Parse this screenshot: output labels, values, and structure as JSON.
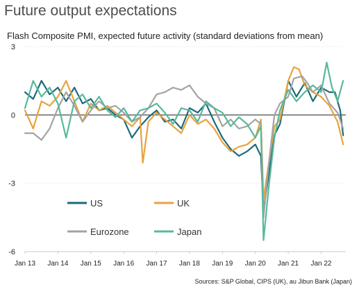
{
  "title": "Future output expectations",
  "chart_data": {
    "type": "line",
    "title": "Future output expectations",
    "subtitle": "Flash Composite PMI, expected future activity (standard deviations from mean)",
    "source": "Sources: S&P Global, CIPS (UK), au Jibun Bank (Japan)",
    "ylim": [
      -6,
      3
    ],
    "yticks": [
      3,
      0,
      -3,
      -6
    ],
    "xlim": [
      2013.0,
      2022.75
    ],
    "xticks": [
      {
        "label": "Jan 13",
        "value": 2013
      },
      {
        "label": "Jan 14",
        "value": 2014
      },
      {
        "label": "Jan 15",
        "value": 2015
      },
      {
        "label": "Jan 16",
        "value": 2016
      },
      {
        "label": "Jan 17",
        "value": 2017
      },
      {
        "label": "Jan 18",
        "value": 2018
      },
      {
        "label": "Jan 19",
        "value": 2019
      },
      {
        "label": "Jan 20",
        "value": 2020
      },
      {
        "label": "Jan 21",
        "value": 2021
      },
      {
        "label": "Jan 22",
        "value": 2022
      }
    ],
    "legend_placement": "lower-left",
    "series": [
      {
        "name": "US",
        "color": "#1b6a7a",
        "x": [
          2013.0,
          2013.25,
          2013.5,
          2013.75,
          2014.0,
          2014.25,
          2014.5,
          2014.75,
          2015.0,
          2015.25,
          2015.5,
          2015.75,
          2016.0,
          2016.25,
          2016.5,
          2016.75,
          2017.0,
          2017.25,
          2017.5,
          2017.75,
          2018.0,
          2018.25,
          2018.5,
          2018.75,
          2019.0,
          2019.25,
          2019.5,
          2019.75,
          2020.0,
          2020.17,
          2020.25,
          2020.42,
          2020.58,
          2020.75,
          2021.0,
          2021.25,
          2021.5,
          2021.75,
          2022.0,
          2022.25,
          2022.42,
          2022.58,
          2022.67
        ],
        "y": [
          1.0,
          0.7,
          1.5,
          0.9,
          1.2,
          0.6,
          1.2,
          0.5,
          0.7,
          0.2,
          0.3,
          0.0,
          -0.2,
          -1.0,
          -0.5,
          -0.1,
          0.2,
          -0.3,
          -0.2,
          -0.6,
          0.3,
          0.1,
          0.5,
          -0.3,
          -1.0,
          -1.5,
          -1.8,
          -1.6,
          -1.3,
          -1.8,
          -4.2,
          -2.5,
          -0.9,
          -0.4,
          1.5,
          0.8,
          1.4,
          0.6,
          1.2,
          1.0,
          1.0,
          0.2,
          -0.9
        ]
      },
      {
        "name": "UK",
        "color": "#e8a23f",
        "x": [
          2013.0,
          2013.25,
          2013.5,
          2013.75,
          2014.0,
          2014.25,
          2014.5,
          2014.75,
          2015.0,
          2015.25,
          2015.5,
          2015.75,
          2016.0,
          2016.25,
          2016.5,
          2016.58,
          2016.75,
          2017.0,
          2017.25,
          2017.5,
          2017.75,
          2018.0,
          2018.25,
          2018.5,
          2018.75,
          2019.0,
          2019.25,
          2019.5,
          2019.75,
          2020.0,
          2020.17,
          2020.25,
          2020.42,
          2020.58,
          2020.75,
          2021.0,
          2021.17,
          2021.33,
          2021.5,
          2021.75,
          2022.0,
          2022.25,
          2022.5,
          2022.67
        ],
        "y": [
          0.2,
          -0.6,
          0.6,
          0.4,
          0.8,
          1.5,
          0.6,
          -0.3,
          0.5,
          0.2,
          0.4,
          0.1,
          -0.2,
          -0.5,
          -0.1,
          -2.1,
          -0.3,
          0.1,
          -0.2,
          -0.5,
          -0.8,
          0.0,
          -0.4,
          -0.2,
          -0.6,
          -1.2,
          -1.6,
          -1.4,
          -1.3,
          -1.0,
          -0.2,
          -3.7,
          -2.0,
          -0.5,
          -0.2,
          1.5,
          2.1,
          2.0,
          1.3,
          1.0,
          0.8,
          0.4,
          -0.3,
          -1.3
        ]
      },
      {
        "name": "Eurozone",
        "color": "#a3a3a3",
        "x": [
          2013.0,
          2013.25,
          2013.5,
          2013.75,
          2014.0,
          2014.25,
          2014.5,
          2014.75,
          2015.0,
          2015.25,
          2015.5,
          2015.75,
          2016.0,
          2016.25,
          2016.5,
          2016.75,
          2017.0,
          2017.25,
          2017.5,
          2017.75,
          2018.0,
          2018.25,
          2018.5,
          2018.75,
          2019.0,
          2019.25,
          2019.5,
          2019.75,
          2020.0,
          2020.17,
          2020.25,
          2020.42,
          2020.58,
          2020.75,
          2021.0,
          2021.17,
          2021.42,
          2021.58,
          2021.75,
          2022.0,
          2022.25,
          2022.5,
          2022.67
        ],
        "y": [
          -0.8,
          -0.8,
          -1.1,
          -0.6,
          0.3,
          1.0,
          0.4,
          -0.3,
          0.2,
          0.6,
          0.3,
          0.4,
          0.1,
          -0.3,
          -0.1,
          0.3,
          0.9,
          1.0,
          1.2,
          1.1,
          1.3,
          0.8,
          0.5,
          0.3,
          -0.5,
          -0.2,
          -0.6,
          -0.5,
          -0.2,
          -0.4,
          -4.5,
          -2.0,
          0.0,
          0.5,
          0.8,
          1.6,
          1.7,
          1.4,
          1.0,
          1.3,
          0.5,
          0.1,
          -0.6
        ]
      },
      {
        "name": "Japan",
        "color": "#57b99b",
        "x": [
          2013.0,
          2013.25,
          2013.5,
          2013.75,
          2014.0,
          2014.25,
          2014.5,
          2014.75,
          2015.0,
          2015.25,
          2015.5,
          2015.75,
          2016.0,
          2016.25,
          2016.5,
          2016.75,
          2017.0,
          2017.25,
          2017.5,
          2017.75,
          2018.0,
          2018.25,
          2018.5,
          2018.75,
          2019.0,
          2019.25,
          2019.5,
          2019.75,
          2020.0,
          2020.17,
          2020.25,
          2020.42,
          2020.58,
          2020.75,
          2021.0,
          2021.25,
          2021.5,
          2021.75,
          2022.0,
          2022.17,
          2022.33,
          2022.5,
          2022.67
        ],
        "y": [
          0.3,
          1.5,
          0.8,
          1.2,
          0.5,
          -1.0,
          0.6,
          0.9,
          0.3,
          0.8,
          0.2,
          -0.1,
          0.3,
          -0.3,
          0.2,
          0.3,
          0.5,
          0.1,
          -0.4,
          0.3,
          0.2,
          -0.3,
          0.6,
          0.3,
          0.1,
          -0.5,
          -0.1,
          -0.4,
          -1.0,
          -0.5,
          -5.5,
          -3.0,
          -1.0,
          0.2,
          1.1,
          0.6,
          1.0,
          1.3,
          1.0,
          2.3,
          1.2,
          0.6,
          1.5
        ]
      }
    ]
  }
}
